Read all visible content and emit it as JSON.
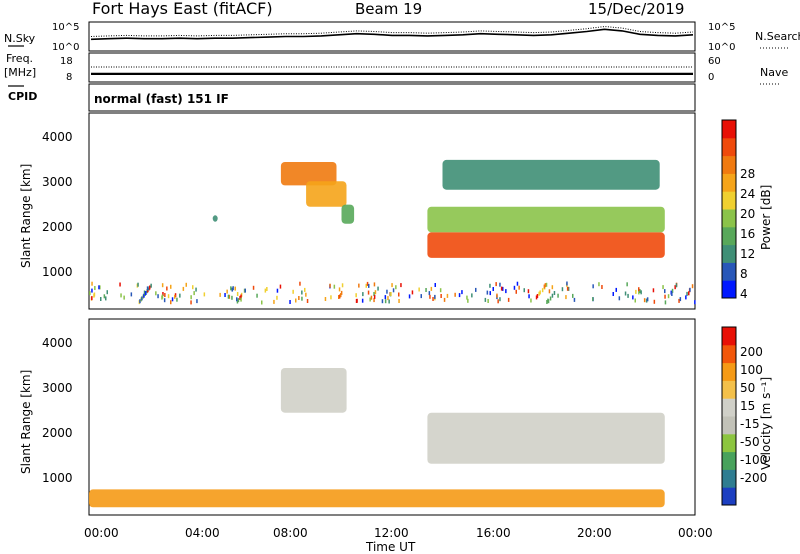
{
  "header": {
    "title": "Fort Hays East (fitACF)",
    "beam": "Beam 19",
    "date": "15/Dec/2019"
  },
  "mode_label": "normal (fast) 151 IF",
  "side_labels": {
    "nsky": "N.Sky",
    "freq_line1": "Freq.",
    "freq_line2": "[MHz]",
    "cpid": "CPID",
    "nsearch": "N.Search",
    "nave": "Nave"
  },
  "colors": {
    "power_scale": [
      "#0018ff",
      "#2857b8",
      "#3f8f76",
      "#58a85a",
      "#8bc34a",
      "#f0d030",
      "#f5a41a",
      "#f07a10",
      "#ef4a0c",
      "#e81006"
    ],
    "velocity_scale": [
      "#e81006",
      "#f2570a",
      "#f59a16",
      "#f3c04a",
      "#d0d0c8",
      "#c2c2b8",
      "#8cc53f",
      "#48a25c",
      "#2f7d91",
      "#1c3fc1"
    ]
  },
  "chart_data": [
    {
      "type": "line",
      "title": "N.Sky / N.Search",
      "ytick_labels_left": [
        "10^5",
        "10^0"
      ],
      "ytick_labels_right": [
        "10^5",
        "10^0"
      ],
      "y_scale": "log",
      "series": [
        {
          "name": "N.Sky",
          "style": "solid",
          "values_log10": [
            2.1,
            2.2,
            2.3,
            2.2,
            2.2,
            2.3,
            2.2,
            2.3,
            2.3,
            2.4,
            2.5,
            2.6,
            2.6,
            2.7,
            2.9,
            3.1,
            3.0,
            2.8,
            2.8,
            2.7,
            2.8,
            2.9,
            3.1,
            3.0,
            2.9,
            2.8,
            2.9,
            3.2,
            3.5,
            3.9,
            3.6,
            3.0,
            2.8,
            2.7,
            2.9
          ]
        },
        {
          "name": "N.Search",
          "style": "dotted",
          "values_log10": [
            2.6,
            2.7,
            2.8,
            2.7,
            2.7,
            2.8,
            2.7,
            2.8,
            2.8,
            2.9,
            3.0,
            3.1,
            3.1,
            3.2,
            3.4,
            3.6,
            3.5,
            3.3,
            3.3,
            3.2,
            3.3,
            3.4,
            3.6,
            3.5,
            3.4,
            3.3,
            3.4,
            3.7,
            4.0,
            4.4,
            4.1,
            3.5,
            3.3,
            3.2,
            3.4
          ]
        }
      ]
    },
    {
      "type": "line",
      "title": "Freq / Nave",
      "ytick_labels_left": [
        "18",
        "8"
      ],
      "ytick_labels_right": [
        "60",
        "0"
      ],
      "series": [
        {
          "name": "Freq.",
          "unit": "MHz",
          "values": [
            10.8,
            10.8,
            10.8,
            10.8,
            10.8,
            10.8,
            10.8,
            10.8
          ]
        },
        {
          "name": "Nave",
          "style": "dotted",
          "values": [
            31,
            31,
            31,
            31,
            31,
            31,
            31,
            31
          ]
        }
      ]
    },
    {
      "type": "heatmap",
      "title": "Power",
      "xlabel": "",
      "ylabel": "Slant Range [km]",
      "ytick_labels": [
        "4000",
        "3000",
        "2000",
        "1000"
      ],
      "colorbar_label": "Power [dB]",
      "colorbar_ticks": [
        "28",
        "24",
        "20",
        "16",
        "12",
        "8",
        "4"
      ],
      "regions": [
        {
          "t_start": 7.6,
          "t_end": 9.8,
          "range_start": 2900,
          "range_end": 3450,
          "level": 7
        },
        {
          "t_start": 8.6,
          "t_end": 10.2,
          "range_start": 2400,
          "range_end": 3000,
          "level": 6
        },
        {
          "t_start": 10.0,
          "t_end": 10.5,
          "range_start": 2000,
          "range_end": 2450,
          "level": 3
        },
        {
          "t_start": 4.9,
          "t_end": 5.1,
          "range_start": 2050,
          "range_end": 2200,
          "level": 2
        },
        {
          "t_start": 13.4,
          "t_end": 22.8,
          "range_start": 1200,
          "range_end": 1800,
          "level": 8
        },
        {
          "t_start": 13.4,
          "t_end": 22.8,
          "range_start": 1800,
          "range_end": 2400,
          "level": 4
        },
        {
          "t_start": 14.0,
          "t_end": 22.6,
          "range_start": 2800,
          "range_end": 3500,
          "level": 2
        }
      ]
    },
    {
      "type": "heatmap",
      "title": "Velocity",
      "xlabel": "Time UT",
      "ylabel": "Slant Range [km]",
      "ytick_labels": [
        "4000",
        "3000",
        "2000",
        "1000"
      ],
      "xtick_labels": [
        "00:00",
        "04:00",
        "08:00",
        "12:00",
        "16:00",
        "20:00",
        "00:00"
      ],
      "colorbar_label": "Velocity [m s⁻¹]",
      "colorbar_ticks": [
        "200",
        "100",
        "50",
        "15",
        "-15",
        "-50",
        "-100",
        "-200"
      ],
      "regions": [
        {
          "t_start": 7.6,
          "t_end": 10.2,
          "range_start": 2400,
          "range_end": 3450,
          "level": 4
        },
        {
          "t_start": 13.4,
          "t_end": 22.8,
          "range_start": 1200,
          "range_end": 2400,
          "level": 4
        },
        {
          "t_start": 0.0,
          "t_end": 22.8,
          "range_start": 180,
          "range_end": 600,
          "level": 2
        }
      ]
    }
  ]
}
